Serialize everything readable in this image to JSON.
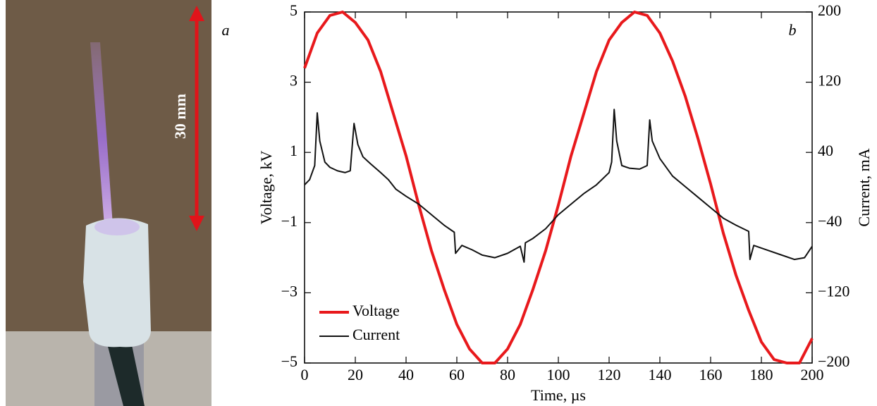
{
  "photo": {
    "label": "a",
    "scale_text": "30 mm"
  },
  "chart_data": {
    "type": "line",
    "panel_label": "b",
    "xlabel": "Time, µs",
    "ylabel": "Voltage, kV",
    "y2label": "Current, mA",
    "xlim": [
      0,
      200
    ],
    "xticks": [
      0,
      20,
      40,
      60,
      80,
      100,
      120,
      140,
      160,
      180,
      200
    ],
    "ylim": [
      -5,
      5
    ],
    "yticks": [
      {
        "value": -5,
        "label": "−5"
      },
      {
        "value": -3,
        "label": "−3"
      },
      {
        "value": -1,
        "label": "−1"
      },
      1,
      3,
      5
    ],
    "y2lim": [
      -200,
      200
    ],
    "y2ticks": [
      {
        "value": -200,
        "label": "−200"
      },
      {
        "value": -120,
        "label": "−120"
      },
      {
        "value": -40,
        "label": "−40"
      },
      40,
      120,
      200
    ],
    "legend": "lower left",
    "series": [
      {
        "name": "Voltage",
        "color": "#e8191c",
        "x": [
          0,
          5,
          10,
          15,
          20,
          25,
          30,
          35,
          40,
          45,
          50,
          55,
          60,
          65,
          70,
          75,
          80,
          85,
          90,
          95,
          100,
          105,
          110,
          115,
          120,
          125,
          130,
          135,
          140,
          145,
          150,
          155,
          160,
          165,
          170,
          175,
          180,
          185,
          190,
          195,
          200
        ],
        "values": [
          3.4,
          4.4,
          4.9,
          5.0,
          4.7,
          4.2,
          3.3,
          2.1,
          0.9,
          -0.5,
          -1.8,
          -2.9,
          -3.9,
          -4.6,
          -5.0,
          -5.0,
          -4.6,
          -3.9,
          -2.9,
          -1.8,
          -0.5,
          0.9,
          2.1,
          3.3,
          4.2,
          4.7,
          5.0,
          4.9,
          4.4,
          3.6,
          2.6,
          1.4,
          0.1,
          -1.3,
          -2.5,
          -3.5,
          -4.4,
          -4.9,
          -5.0,
          -5.0,
          -4.3
        ]
      },
      {
        "name": "Current",
        "color": "#111111",
        "axis": "y2",
        "x": [
          0,
          2,
          4,
          5,
          6,
          8,
          10,
          13,
          16,
          18,
          19.5,
          21,
          23,
          26,
          30,
          33,
          36,
          40,
          45,
          50,
          55,
          59,
          59.5,
          62,
          66,
          70,
          75,
          80,
          85,
          86.5,
          87,
          90,
          95,
          100,
          105,
          110,
          115,
          120,
          121,
          122,
          123,
          125,
          128,
          132,
          135,
          136,
          137,
          140,
          145,
          150,
          155,
          160,
          165,
          170,
          175,
          175.5,
          177,
          182,
          188,
          193,
          197,
          200
        ],
        "values": [
          3,
          9,
          25,
          85,
          53,
          29,
          23,
          19,
          17,
          19,
          73,
          49,
          35,
          27,
          17,
          9,
          -2,
          -10,
          -19,
          -31,
          -43,
          -51,
          -75,
          -66,
          -71,
          -77,
          -80,
          -75,
          -67,
          -85,
          -63,
          -58,
          -47,
          -31,
          -19,
          -7,
          3,
          17,
          29,
          89,
          53,
          25,
          22,
          21,
          25,
          77,
          53,
          33,
          13,
          1,
          -11,
          -23,
          -35,
          -43,
          -50,
          -82,
          -66,
          -71,
          -77,
          -82,
          -80,
          -67
        ]
      }
    ]
  }
}
